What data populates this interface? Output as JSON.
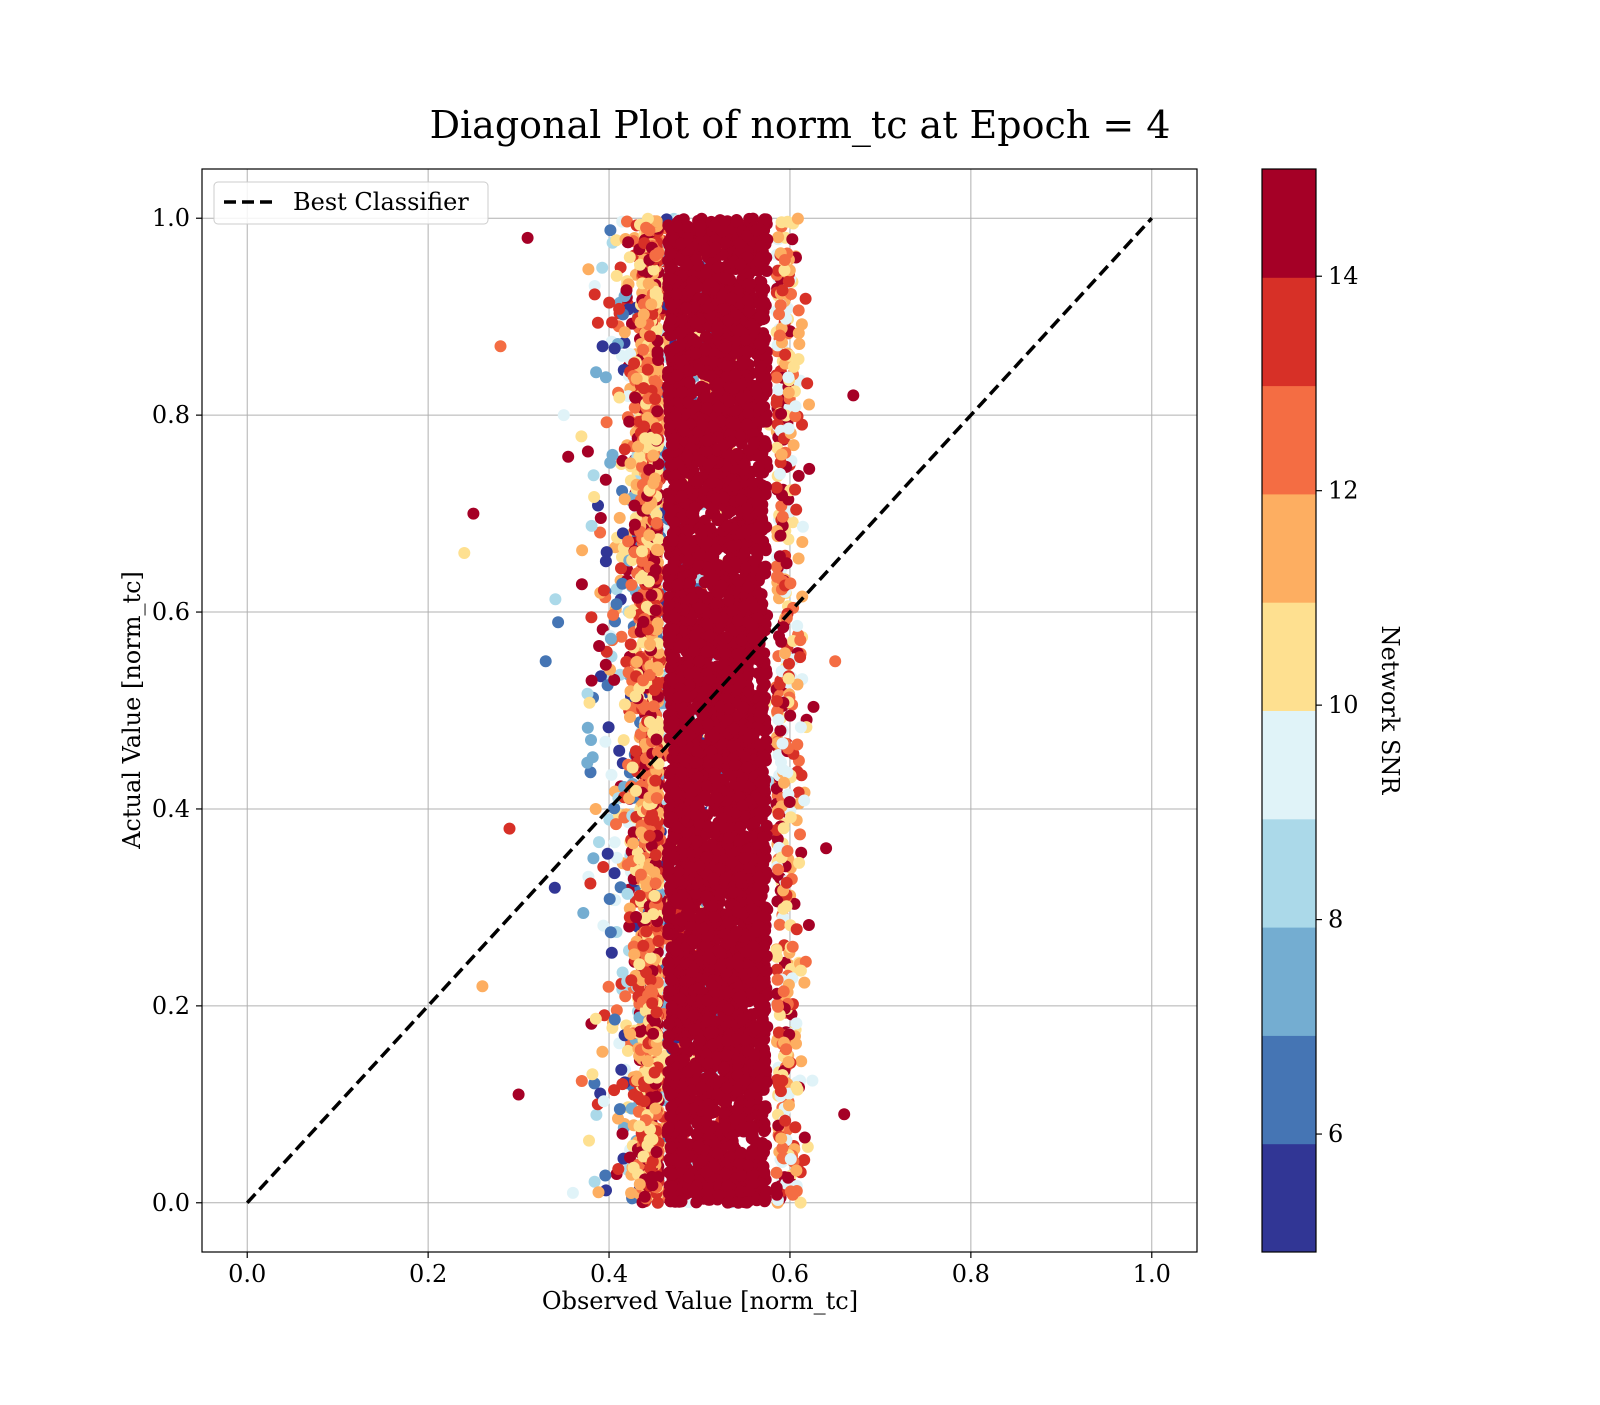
{
  "chart_data": {
    "type": "scatter",
    "title": "Diagonal Plot of norm_tc at Epoch = 4",
    "xlabel": "Observed Value [norm_tc]",
    "ylabel": "Actual Value [norm_tc]",
    "xlim": [
      -0.05,
      1.05
    ],
    "ylim": [
      -0.05,
      1.05
    ],
    "xticks": [
      0.0,
      0.2,
      0.4,
      0.6,
      0.8,
      1.0
    ],
    "yticks": [
      0.0,
      0.2,
      0.4,
      0.6,
      0.8,
      1.0
    ],
    "xtick_labels": [
      "0.0",
      "0.2",
      "0.4",
      "0.6",
      "0.8",
      "1.0"
    ],
    "ytick_labels": [
      "0.0",
      "0.2",
      "0.4",
      "0.6",
      "0.8",
      "1.0"
    ],
    "grid": true,
    "legend": {
      "placement": "upper-left",
      "entries": [
        {
          "label": "Best Classifier",
          "style": "dashed",
          "color": "#000000"
        }
      ]
    },
    "reference_line": {
      "name": "Best Classifier",
      "x": [
        0.0,
        1.0
      ],
      "y": [
        0.0,
        1.0
      ]
    },
    "series": [
      {
        "color_by": "Network SNR",
        "description_points": [
          [
            0.52,
            0.95,
            15
          ],
          [
            0.53,
            0.85,
            15
          ],
          [
            0.51,
            0.75,
            15
          ],
          [
            0.54,
            0.65,
            15
          ],
          [
            0.5,
            0.55,
            15
          ],
          [
            0.52,
            0.45,
            15
          ],
          [
            0.55,
            0.35,
            15
          ],
          [
            0.51,
            0.25,
            15
          ],
          [
            0.53,
            0.15,
            15
          ],
          [
            0.52,
            0.05,
            15
          ],
          [
            0.31,
            0.98,
            14
          ],
          [
            0.28,
            0.87,
            12
          ],
          [
            0.35,
            0.8,
            9
          ],
          [
            0.25,
            0.7,
            14
          ],
          [
            0.24,
            0.66,
            10
          ],
          [
            0.33,
            0.55,
            6
          ],
          [
            0.38,
            0.47,
            7
          ],
          [
            0.29,
            0.38,
            13
          ],
          [
            0.34,
            0.32,
            5
          ],
          [
            0.26,
            0.22,
            11
          ],
          [
            0.3,
            0.11,
            14
          ],
          [
            0.36,
            0.01,
            9
          ],
          [
            0.67,
            0.82,
            14
          ],
          [
            0.66,
            0.09,
            14
          ],
          [
            0.65,
            0.55,
            12
          ],
          [
            0.64,
            0.36,
            14
          ]
        ]
      }
    ],
    "colorbar": {
      "label": "Network SNR",
      "range": [
        4.9,
        15.0
      ],
      "ticks": [
        6,
        8,
        10,
        12,
        14
      ],
      "tick_labels": [
        "6",
        "8",
        "10",
        "12",
        "14"
      ],
      "colors": [
        "#313695",
        "#4575b4",
        "#74add1",
        "#abd9e9",
        "#e0f3f8",
        "#fee090",
        "#fdae61",
        "#f46d43",
        "#d73027",
        "#a50026"
      ]
    }
  }
}
